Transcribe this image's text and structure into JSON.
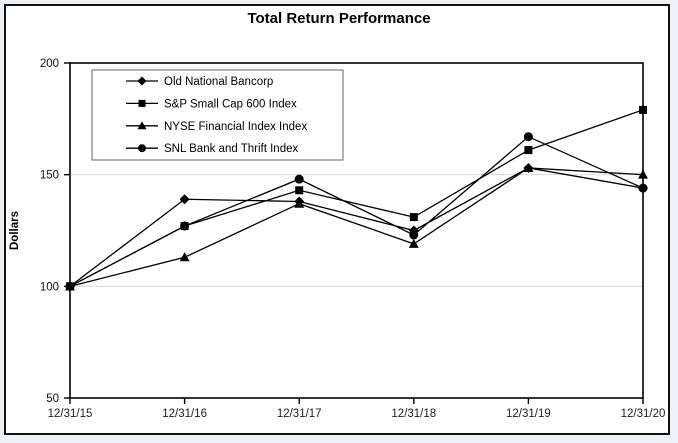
{
  "chart": {
    "title": "Total Return Performance"
  },
  "chart_data": {
    "type": "line",
    "title": "Total Return Performance",
    "xlabel": "",
    "ylabel": "Dollars",
    "ylim": [
      50,
      200
    ],
    "yticks": [
      50,
      100,
      150,
      200
    ],
    "gridlines_y": [
      100,
      150
    ],
    "grid": "horizontal-light",
    "legend_position": "top-left-inside",
    "colors": {
      "series": "#000000",
      "gridline": "#d9d9d9",
      "plot_border": "#000000",
      "legend_border": "#7f7f7f",
      "background": "#ffffff",
      "frame_margin": "#eef1f8"
    },
    "categories": [
      "12/31/15",
      "12/31/16",
      "12/31/17",
      "12/31/18",
      "12/31/19",
      "12/31/20"
    ],
    "series": [
      {
        "name": "Old National Bancorp",
        "marker": "diamond",
        "values": [
          100,
          139,
          138,
          125,
          153,
          144
        ]
      },
      {
        "name": "S&P Small Cap 600 Index",
        "marker": "square",
        "values": [
          100,
          127,
          143,
          131,
          161,
          179
        ]
      },
      {
        "name": "NYSE Financial Index Index",
        "marker": "triangle",
        "values": [
          100,
          113,
          137,
          119,
          153,
          150
        ]
      },
      {
        "name": "SNL Bank and Thrift Index",
        "marker": "circle",
        "values": [
          100,
          127,
          148,
          123,
          167,
          144
        ]
      }
    ]
  }
}
